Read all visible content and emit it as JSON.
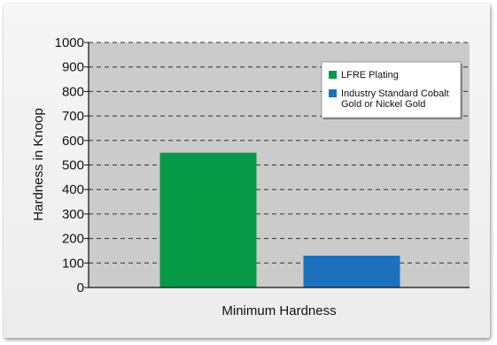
{
  "chart_data": {
    "type": "bar",
    "title": "",
    "xlabel": "Minimum Hardness",
    "ylabel": "Hardness in Knoop",
    "ylim": [
      0,
      1000
    ],
    "yticks": [
      0,
      100,
      200,
      300,
      400,
      500,
      600,
      700,
      800,
      900,
      1000
    ],
    "grid": true,
    "legend_position": "top-right",
    "series": [
      {
        "name": "LFRE Plating",
        "value": 550,
        "color": "#079a46"
      },
      {
        "name": "Industry Standard Cobalt Gold or Nickel Gold",
        "value": 130,
        "color": "#1c71bd"
      }
    ],
    "legend": {
      "items": [
        {
          "lines": [
            "LFRE Plating"
          ],
          "color": "#079a46"
        },
        {
          "lines": [
            "Industry Standard Cobalt",
            "Gold or Nickel Gold"
          ],
          "color": "#1c71bd"
        }
      ]
    },
    "plot_background": "#cbcbcb"
  }
}
